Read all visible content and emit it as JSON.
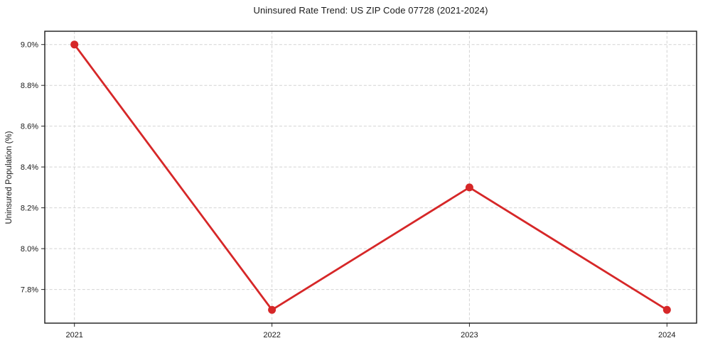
{
  "chart_data": {
    "type": "line",
    "title": "Uninsured Rate Trend: US ZIP Code 07728 (2021-2024)",
    "xlabel": "",
    "ylabel": "Uninsured Population (%)",
    "x": [
      2021,
      2022,
      2023,
      2024
    ],
    "xtick_labels": [
      "2021",
      "2022",
      "2023",
      "2024"
    ],
    "values": [
      9.0,
      7.7,
      8.3,
      7.7
    ],
    "value_unit": "%",
    "yticks": [
      {
        "value": 7.8,
        "label": "7.8%"
      },
      {
        "value": 8.0,
        "label": "8.0%"
      },
      {
        "value": 8.2,
        "label": "8.2%"
      },
      {
        "value": 8.4,
        "label": "8.4%"
      },
      {
        "value": 8.6,
        "label": "8.6%"
      },
      {
        "value": 8.8,
        "label": "8.8%"
      },
      {
        "value": 9.0,
        "label": "9.0%"
      }
    ],
    "xlim": [
      2020.85,
      2024.15
    ],
    "ylim": [
      7.635,
      9.065
    ],
    "grid": true,
    "grid_style": "dashed",
    "legend_position": "none",
    "line_color": "#d62728",
    "marker": "circle",
    "marker_radius": 5.5,
    "line_width": 2.8
  }
}
